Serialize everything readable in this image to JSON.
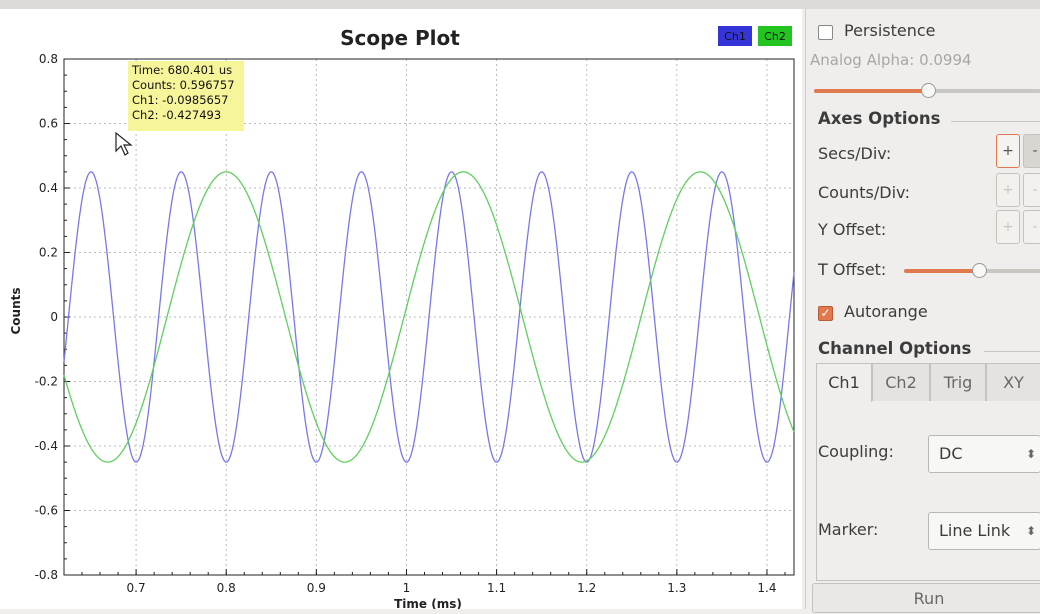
{
  "plot": {
    "title": "Scope Plot",
    "xlabel": "Time (ms)",
    "ylabel": "Counts",
    "legend": [
      "Ch1",
      "Ch2"
    ],
    "colors": {
      "ch1": "#7878e8",
      "ch2": "#5fcf5f",
      "legend_ch1": "#3434d9",
      "legend_ch2": "#22c422",
      "tooltip_bg": "#f6f59a"
    }
  },
  "tooltip": {
    "time": "Time: 680.401 us",
    "counts": "Counts: 0.596757",
    "ch1": "Ch1: -0.0985657",
    "ch2": "Ch2: -0.427493"
  },
  "chart_data": {
    "type": "line",
    "title": "Scope Plot",
    "xlabel": "Time (ms)",
    "ylabel": "Counts",
    "xlim": [
      0.62,
      1.43
    ],
    "ylim": [
      -0.8,
      0.8
    ],
    "x_ticks": [
      0.7,
      0.8,
      0.9,
      1,
      1.1,
      1.2,
      1.3,
      1.4
    ],
    "x_tick_labels": [
      "0.7",
      "0.8",
      "0.9",
      "1",
      "1.1",
      "1.2",
      "1.3",
      "1.4"
    ],
    "y_ticks": [
      0.8,
      0.6,
      0.4,
      0.2,
      0,
      -0.2,
      -0.4,
      -0.6,
      -0.8
    ],
    "y_tick_labels": [
      "0.8",
      "0.6",
      "0.4",
      "0.2",
      "0",
      "-0.2",
      "-0.4",
      "-0.6",
      "-0.8"
    ],
    "grid": true,
    "legend_position": "top-right",
    "series": [
      {
        "name": "Ch1",
        "kind": "sine",
        "amplitude": 0.45,
        "period_ms": 0.1,
        "peak_at_ms": 0.65
      },
      {
        "name": "Ch2",
        "kind": "sine",
        "amplitude": 0.45,
        "period_ms": 0.263,
        "peak_at_ms": 0.8
      }
    ]
  },
  "controls": {
    "persistence": "Persistence",
    "analog_alpha": "Analog Alpha: 0.0994",
    "alpha_level": 0.5,
    "axes_options": "Axes Options",
    "secs_div": "Secs/Div:",
    "counts_div": "Counts/Div:",
    "y_offset": "Y Offset:",
    "t_offset": "T Offset:",
    "t_offset_level": 0.55,
    "plus": "+",
    "minus": "-",
    "autorange": "Autorange",
    "autorange_checked": true,
    "channel_options": "Channel Options",
    "tabs": [
      "Ch1",
      "Ch2",
      "Trig",
      "XY"
    ],
    "coupling_label": "Coupling:",
    "coupling_value": "DC",
    "marker_label": "Marker:",
    "marker_value": "Line Link",
    "run": "Run"
  }
}
